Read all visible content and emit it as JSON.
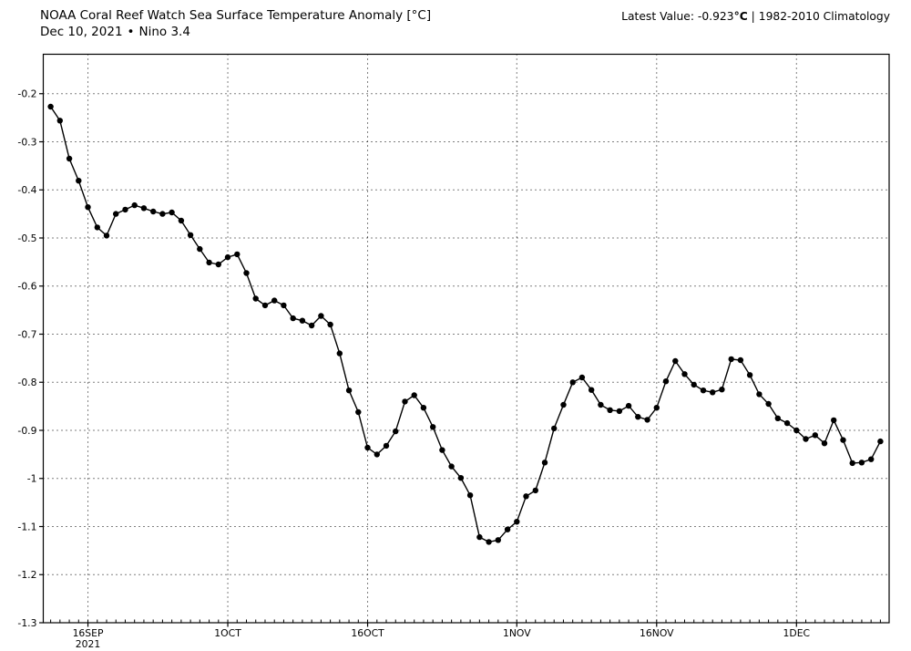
{
  "header": {
    "title": "NOAA Coral Reef Watch Sea Surface Temperature Anomaly [°C]",
    "subtitle_date": "Dec 10, 2021",
    "subtitle_bullet": "•",
    "subtitle_region": "Nino 3.4",
    "latest": {
      "label": "Latest Value:",
      "value": "-0.923",
      "unit": "°C",
      "separator": "|",
      "climatology": "1982-2010 Climatology"
    }
  },
  "chart_data": {
    "type": "line",
    "title": "NOAA Coral Reef Watch Sea Surface Temperature Anomaly [°C]",
    "subtitle": "Dec 10, 2021 • Nino 3.4",
    "xlabel": "",
    "ylabel": "",
    "grid": "dotted",
    "legend": "none",
    "line_color": "#000000",
    "marker": "circle",
    "marker_color": "#000000",
    "ylim": [
      -1.3,
      -0.118
    ],
    "yticks": [
      -0.2,
      -0.3,
      -0.4,
      -0.5,
      -0.6,
      -0.7,
      -0.8,
      -0.9,
      -1.0,
      -1.1,
      -1.2,
      -1.3
    ],
    "ytick_labels": [
      "-0.2",
      "-0.3",
      "-0.4",
      "-0.5",
      "-0.6",
      "-0.7",
      "-0.8",
      "-0.9",
      "-1",
      "-1.1",
      "-1.2",
      "-1.3"
    ],
    "xticks": [
      {
        "label": "16SEP",
        "sublabel": "2021",
        "date": "2021-09-16"
      },
      {
        "label": "1OCT",
        "date": "2021-10-01"
      },
      {
        "label": "16OCT",
        "date": "2021-10-16"
      },
      {
        "label": "1NOV",
        "date": "2021-11-01"
      },
      {
        "label": "16NOV",
        "date": "2021-11-16"
      },
      {
        "label": "1DEC",
        "date": "2021-12-01"
      }
    ],
    "x_start_date": "2021-09-12",
    "x_end_date": "2021-12-10",
    "dates": [
      "2021-09-12",
      "2021-09-13",
      "2021-09-14",
      "2021-09-15",
      "2021-09-16",
      "2021-09-17",
      "2021-09-18",
      "2021-09-19",
      "2021-09-20",
      "2021-09-21",
      "2021-09-22",
      "2021-09-23",
      "2021-09-24",
      "2021-09-25",
      "2021-09-26",
      "2021-09-27",
      "2021-09-28",
      "2021-09-29",
      "2021-09-30",
      "2021-10-01",
      "2021-10-02",
      "2021-10-03",
      "2021-10-04",
      "2021-10-05",
      "2021-10-06",
      "2021-10-07",
      "2021-10-08",
      "2021-10-09",
      "2021-10-10",
      "2021-10-11",
      "2021-10-12",
      "2021-10-13",
      "2021-10-14",
      "2021-10-15",
      "2021-10-16",
      "2021-10-17",
      "2021-10-18",
      "2021-10-19",
      "2021-10-20",
      "2021-10-21",
      "2021-10-22",
      "2021-10-23",
      "2021-10-24",
      "2021-10-25",
      "2021-10-26",
      "2021-10-27",
      "2021-10-28",
      "2021-10-29",
      "2021-10-30",
      "2021-10-31",
      "2021-11-01",
      "2021-11-02",
      "2021-11-03",
      "2021-11-04",
      "2021-11-05",
      "2021-11-06",
      "2021-11-07",
      "2021-11-08",
      "2021-11-09",
      "2021-11-10",
      "2021-11-11",
      "2021-11-12",
      "2021-11-13",
      "2021-11-14",
      "2021-11-15",
      "2021-11-16",
      "2021-11-17",
      "2021-11-18",
      "2021-11-19",
      "2021-11-20",
      "2021-11-21",
      "2021-11-22",
      "2021-11-23",
      "2021-11-24",
      "2021-11-25",
      "2021-11-26",
      "2021-11-27",
      "2021-11-28",
      "2021-11-29",
      "2021-11-30",
      "2021-12-01",
      "2021-12-02",
      "2021-12-03",
      "2021-12-04",
      "2021-12-05",
      "2021-12-06",
      "2021-12-07",
      "2021-12-08",
      "2021-12-09",
      "2021-12-10"
    ],
    "values": [
      -0.227,
      -0.256,
      -0.335,
      -0.381,
      -0.436,
      -0.478,
      -0.495,
      -0.45,
      -0.441,
      -0.432,
      -0.438,
      -0.445,
      -0.45,
      -0.447,
      -0.464,
      -0.494,
      -0.523,
      -0.551,
      -0.555,
      -0.54,
      -0.534,
      -0.573,
      -0.626,
      -0.64,
      -0.63,
      -0.64,
      -0.667,
      -0.672,
      -0.682,
      -0.662,
      -0.68,
      -0.74,
      -0.817,
      -0.862,
      -0.936,
      -0.95,
      -0.932,
      -0.902,
      -0.84,
      -0.827,
      -0.853,
      -0.893,
      -0.941,
      -0.975,
      -0.999,
      -1.035,
      -1.122,
      -1.132,
      -1.128,
      -1.106,
      -1.09,
      -1.037,
      -1.025,
      -0.967,
      -0.896,
      -0.847,
      -0.8,
      -0.79,
      -0.816,
      -0.847,
      -0.858,
      -0.86,
      -0.849,
      -0.872,
      -0.878,
      -0.853,
      -0.798,
      -0.756,
      -0.783,
      -0.805,
      -0.817,
      -0.821,
      -0.815,
      -0.752,
      -0.754,
      -0.785,
      -0.825,
      -0.845,
      -0.875,
      -0.885,
      -0.9,
      -0.918,
      -0.91,
      -0.927,
      -0.879,
      -0.92,
      -0.968,
      -0.967,
      -0.96,
      -0.923
    ]
  }
}
